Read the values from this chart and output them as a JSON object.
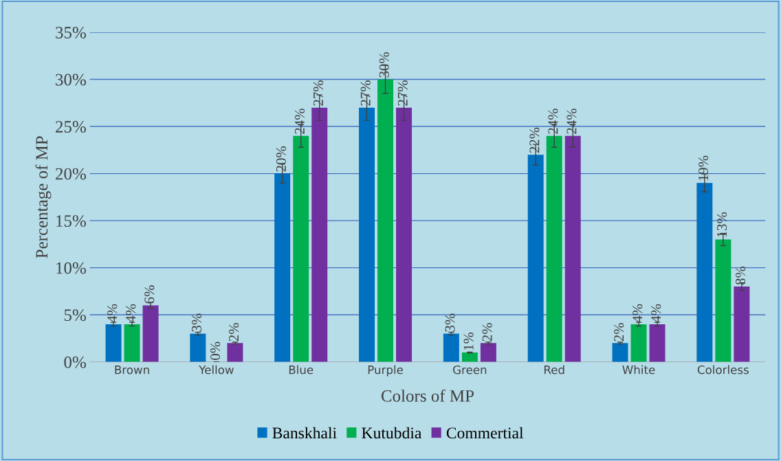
{
  "chart_data": {
    "type": "bar",
    "xlabel": "Colors of MP",
    "ylabel": "Percentage of MP",
    "categories": [
      "Brown",
      "Yellow",
      "Blue",
      "Purple",
      "Green",
      "Red",
      "White",
      "Colorless"
    ],
    "series": [
      {
        "name": "Banskhali",
        "color": "#0070c0",
        "values": [
          4,
          3,
          20,
          27,
          3,
          22,
          2,
          19
        ],
        "errors": [
          0.2,
          0.15,
          1,
          1.35,
          0.15,
          1.1,
          0.1,
          0.95
        ],
        "value_labels": [
          "4%",
          "3%",
          "20%",
          "27%",
          "3%",
          "22%",
          "2%",
          "19%"
        ]
      },
      {
        "name": "Kutubdia",
        "color": "#00b050",
        "values": [
          4,
          0,
          24,
          30,
          1,
          24,
          4,
          13
        ],
        "errors": [
          0.2,
          0,
          1.2,
          1.5,
          0.05,
          1.2,
          0.2,
          0.65
        ],
        "value_labels": [
          "4%",
          "0%",
          "24%",
          "30%",
          "1%",
          "24%",
          "4%",
          "13%"
        ]
      },
      {
        "name": "Commertial",
        "color": "#7030a0",
        "values": [
          6,
          2,
          27,
          27,
          2,
          24,
          4,
          8
        ],
        "errors": [
          0.3,
          0.1,
          1.35,
          1.35,
          0.1,
          1.2,
          0.2,
          0.4
        ],
        "value_labels": [
          "6%",
          "2%",
          "27%",
          "27%",
          "2%",
          "24%",
          "4%",
          "8%"
        ]
      }
    ],
    "ylim": [
      0,
      35
    ],
    "yticks": [
      {
        "value": 0,
        "label": "0%"
      },
      {
        "value": 5,
        "label": "5%"
      },
      {
        "value": 10,
        "label": "10%"
      },
      {
        "value": 15,
        "label": "15%"
      },
      {
        "value": 20,
        "label": "20%"
      },
      {
        "value": 25,
        "label": "25%"
      },
      {
        "value": 30,
        "label": "30%"
      },
      {
        "value": 35,
        "label": "35%"
      }
    ],
    "grid": "y",
    "legend": "bottom"
  }
}
